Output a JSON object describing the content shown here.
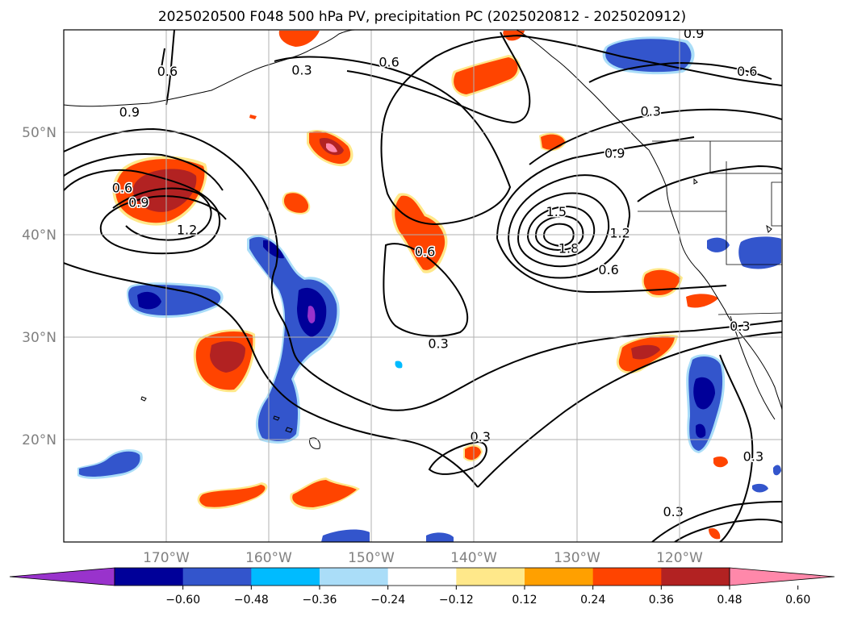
{
  "chart_data": {
    "type": "map-contour",
    "title": "2025020500 F048 500 hPa PV, precipitation PC (2025020812 - 2025020912)",
    "lon_range": [
      -180,
      -110
    ],
    "lat_range": [
      10,
      60
    ],
    "x_ticks": [
      {
        "value": -170,
        "label": "170°W"
      },
      {
        "value": -160,
        "label": "160°W"
      },
      {
        "value": -150,
        "label": "150°W"
      },
      {
        "value": -140,
        "label": "140°W"
      },
      {
        "value": -130,
        "label": "130°W"
      },
      {
        "value": -120,
        "label": "120°W"
      }
    ],
    "y_ticks": [
      {
        "value": 20,
        "label": "20°N"
      },
      {
        "value": 30,
        "label": "30°N"
      },
      {
        "value": 40,
        "label": "40°N"
      },
      {
        "value": 50,
        "label": "50°N"
      }
    ],
    "grid": true,
    "colorbar": {
      "orientation": "horizontal",
      "extend": "both",
      "ticks": [
        "−0.60",
        "−0.48",
        "−0.36",
        "−0.24",
        "−0.12",
        "0.12",
        "0.24",
        "0.36",
        "0.48",
        "0.60"
      ],
      "colors": [
        "#9933cc",
        "#000099",
        "#3355cc",
        "#00bbff",
        "#aaddf8",
        "#ffffff",
        "#ffe88a",
        "#ffa000",
        "#ff4400",
        "#b22222",
        "#ff88aa"
      ]
    },
    "contour_levels": [
      0.3,
      0.6,
      0.9,
      1.2,
      1.5,
      1.8
    ],
    "contour_labels": [
      {
        "text": "0.3",
        "lon": -143.5,
        "lat": 29.4
      },
      {
        "text": "0.3",
        "lon": -156.8,
        "lat": 56.1
      },
      {
        "text": "0.3",
        "lon": -139.4,
        "lat": 20.3
      },
      {
        "text": "0.3",
        "lon": -114.1,
        "lat": 31.1
      },
      {
        "text": "0.3",
        "lon": -120.6,
        "lat": 13.0
      },
      {
        "text": "0.3",
        "lon": -112.8,
        "lat": 18.4
      },
      {
        "text": "0.3",
        "lon": -122.8,
        "lat": 52.1
      },
      {
        "text": "0.6",
        "lon": -148.3,
        "lat": 56.9
      },
      {
        "text": "0.6",
        "lon": -174.3,
        "lat": 44.6
      },
      {
        "text": "0.6",
        "lon": -144.8,
        "lat": 38.4
      },
      {
        "text": "0.6",
        "lon": -126.9,
        "lat": 36.6
      },
      {
        "text": "0.6",
        "lon": -113.4,
        "lat": 56.0
      },
      {
        "text": "0.6",
        "lon": -169.9,
        "lat": 56.0
      },
      {
        "text": "0.9",
        "lon": -173.6,
        "lat": 52.0
      },
      {
        "text": "0.9",
        "lon": -172.7,
        "lat": 43.2
      },
      {
        "text": "0.9",
        "lon": -126.3,
        "lat": 48.0
      },
      {
        "text": "0.9",
        "lon": -118.6,
        "lat": 59.7
      },
      {
        "text": "1.2",
        "lon": -168.0,
        "lat": 40.5
      },
      {
        "text": "1.2",
        "lon": -125.8,
        "lat": 40.2
      },
      {
        "text": "1.5",
        "lon": -132.0,
        "lat": 42.3
      },
      {
        "text": "1.8",
        "lon": -130.8,
        "lat": 38.7
      }
    ],
    "precip_regions": [
      {
        "name": "pos-aleutian-low",
        "lon": -168.6,
        "lat": 44.5,
        "value": 0.45
      },
      {
        "name": "pos-gulf-alaska-north",
        "lon": -141.3,
        "lat": 55.3,
        "value": 0.4
      },
      {
        "name": "pos-center-north-pacific",
        "lon": -144.5,
        "lat": 39.8,
        "value": 0.4
      },
      {
        "name": "pos-west-mid-pacific",
        "lon": -166.9,
        "lat": 28.3,
        "value": 0.45
      },
      {
        "name": "pos-california-coast",
        "lon": -122.0,
        "lat": 29.5,
        "value": 0.45
      },
      {
        "name": "pos-off-bc",
        "lon": -156.2,
        "lat": 48.2,
        "value": 0.6
      },
      {
        "name": "neg-nw-alaska",
        "lon": -119.8,
        "lat": 57.3,
        "value": -0.4
      },
      {
        "name": "neg-central-pacific",
        "lon": -159.0,
        "lat": 30.0,
        "value": -0.55
      },
      {
        "name": "neg-west-central",
        "lon": -171.5,
        "lat": 34.0,
        "value": -0.45
      },
      {
        "name": "neg-baja",
        "lon": -117.4,
        "lat": 24.8,
        "value": -0.55
      },
      {
        "name": "neg-hawaii-west",
        "lon": -176.0,
        "lat": 16.5,
        "value": -0.4
      }
    ]
  }
}
